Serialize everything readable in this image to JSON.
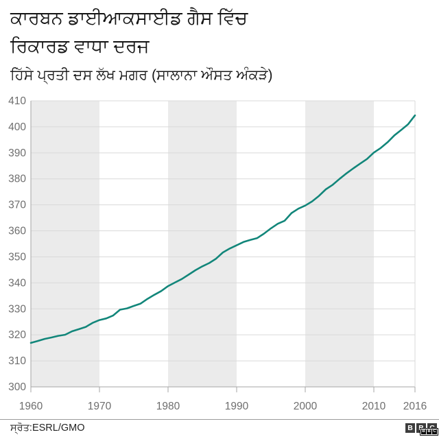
{
  "header": {
    "title_line1": "ਕਾਰਬਨ ਡਾਈਆਕਸਾਈਡ ਗੈਸ ਵਿੱਚ",
    "title_line2": "ਰਿਕਾਰਡ ਵਾਧਾ ਦਰਜ",
    "subtitle": "ਹਿੱਸੇ ਪ੍ਰਤੀ ਦਸ ਲੱਖ ਮਗਰ (ਸਾਲਾਨਾ ਔਸਤ ਅੰਕੜੇ)"
  },
  "footer": {
    "source": "ਸ੍ਰੋਤ:ESRL/GMO",
    "logo_letters": [
      "B",
      "B",
      "C"
    ],
    "logo_mini_letters": [
      "B",
      "B",
      "C"
    ]
  },
  "colors": {
    "line": "#12867a",
    "band": "#ebebeb",
    "grid": "#d9d9d9",
    "axis": "#a6a6a6",
    "tick_label": "#6e6e6e",
    "divider": "#9a9a9a",
    "title": "#141414"
  },
  "chart_data": {
    "type": "line",
    "title": "ਕਾਰਬਨ ਡਾਈਆਕਸਾਈਡ ਗੈਸ ਵਿੱਚ ਰਿਕਾਰਡ ਵਾਧਾ ਦਰਜ",
    "subtitle": "ਹਿੱਸੇ ਪ੍ਰਤੀ ਦਸ ਲੱਖ ਮਗਰ (ਸਾਲਾਨਾ ਔਸਤ ਅੰਕੜੇ)",
    "source": "ESRL/GMO",
    "xlabel": "",
    "ylabel": "",
    "xlim": [
      1960,
      2016
    ],
    "ylim": [
      300,
      410
    ],
    "xticks": [
      1960,
      1970,
      1980,
      1990,
      2000,
      2010,
      2016
    ],
    "yticks": [
      300,
      310,
      320,
      330,
      340,
      350,
      360,
      370,
      380,
      390,
      400,
      410
    ],
    "grid": "horizontal",
    "legend": "none",
    "shaded_decade_bands": [
      [
        1960,
        1970
      ],
      [
        1980,
        1990
      ],
      [
        2000,
        2010
      ]
    ],
    "series": [
      {
        "name": "co2_ppm_annual_mean",
        "x_start": 1960,
        "x_step": 1,
        "values": [
          316.91,
          317.64,
          318.45,
          318.99,
          319.62,
          320.04,
          321.37,
          322.18,
          323.05,
          324.62,
          325.68,
          326.32,
          327.46,
          329.68,
          330.19,
          331.12,
          332.03,
          333.84,
          335.41,
          336.84,
          338.76,
          340.12,
          341.48,
          343.15,
          344.87,
          346.35,
          347.61,
          349.31,
          351.69,
          353.2,
          354.45,
          355.7,
          356.54,
          357.21,
          358.96,
          360.97,
          362.74,
          363.88,
          366.84,
          368.54,
          369.71,
          371.32,
          373.45,
          375.98,
          377.7,
          379.98,
          382.09,
          384.02,
          385.83,
          387.64,
          390.1,
          391.85,
          394.06,
          396.74,
          398.81,
          401.01,
          404.41
        ]
      }
    ]
  }
}
